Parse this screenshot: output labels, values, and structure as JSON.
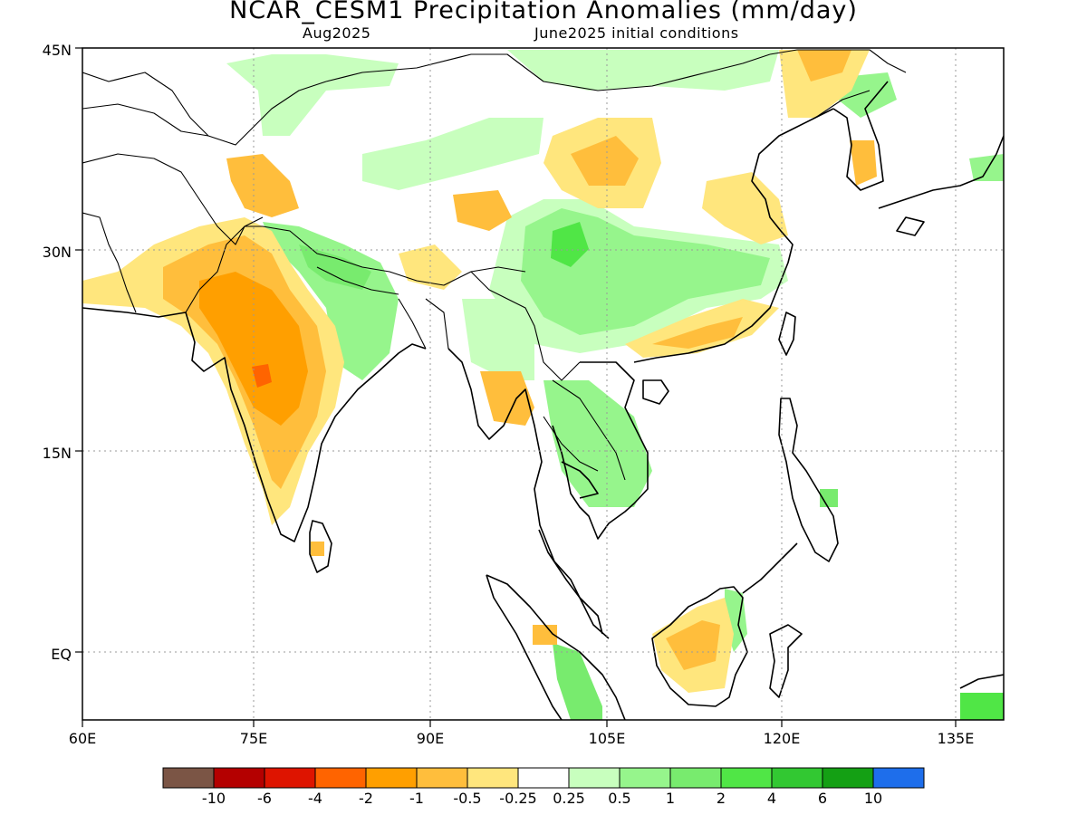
{
  "title": "NCAR_CESM1 Precipitation Anomalies (mm/day)",
  "subtitle_left": "Aug2025",
  "subtitle_right": "June2025 initial conditions",
  "map": {
    "lon_range": [
      60,
      140
    ],
    "lat_range": [
      -5.5,
      45
    ],
    "lon_ticks": [
      "60E",
      "75E",
      "90E",
      "105E",
      "120E",
      "135E"
    ],
    "lat_ticks": [
      "45N",
      "30N",
      "15N",
      "EQ"
    ],
    "grid_lines": "dotted"
  },
  "colorbar": {
    "colors": [
      "#7b5545",
      "#b40000",
      "#de1400",
      "#ff6400",
      "#ff9f00",
      "#ffbe3c",
      "#ffe67d",
      "#ffffff",
      "#c8ffbe",
      "#96f58c",
      "#78eb6e",
      "#50e646",
      "#32c832",
      "#14a014",
      "#1e6eeb"
    ],
    "labels": [
      "-10",
      "-6",
      "-4",
      "-2",
      "-1",
      "-0.5",
      "-0.25",
      "0.25",
      "0.5",
      "1",
      "2",
      "4",
      "6",
      "10"
    ]
  }
}
